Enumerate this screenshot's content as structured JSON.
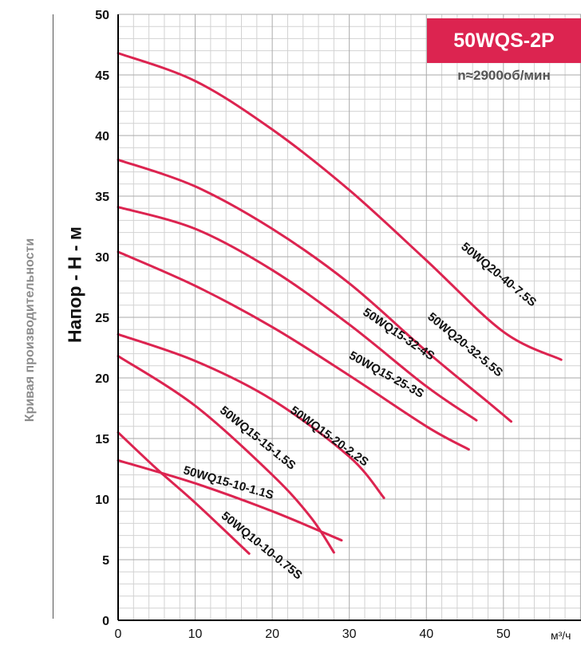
{
  "side_title": "Кривая производительности",
  "chart_data": {
    "type": "line",
    "title": "50WQS-2P",
    "subtitle": "n≈2900об/мин",
    "ylabel": "Напор - Н - м",
    "xlabel": "м³/ч",
    "xlim": [
      0,
      60
    ],
    "ylim": [
      0,
      50
    ],
    "xticks": [
      0,
      10,
      20,
      30,
      40,
      50
    ],
    "yticks": [
      0,
      5,
      10,
      15,
      20,
      25,
      30,
      35,
      40,
      45,
      50
    ],
    "grid": true,
    "line_color": "#dc2450",
    "series": [
      {
        "name": "50WQ20-40-7.5S",
        "x": [
          0,
          10,
          20,
          30,
          40,
          50,
          57.5
        ],
        "y": [
          46.8,
          44.5,
          40.5,
          35.5,
          29.7,
          23.8,
          21.5
        ]
      },
      {
        "name": "50WQ20-32-5.5S",
        "x": [
          0,
          10,
          20,
          30,
          40,
          48,
          51
        ],
        "y": [
          38.0,
          35.8,
          32.3,
          27.8,
          22.2,
          18.0,
          16.4
        ]
      },
      {
        "name": "50WQ15-32-4S",
        "x": [
          0,
          10,
          20,
          30,
          40,
          46.5
        ],
        "y": [
          34.1,
          32.3,
          28.9,
          24.4,
          19.3,
          16.5
        ]
      },
      {
        "name": "50WQ15-25-3S",
        "x": [
          0,
          10,
          20,
          30,
          40,
          45.5
        ],
        "y": [
          30.4,
          27.6,
          24.2,
          20.2,
          16.0,
          14.1
        ]
      },
      {
        "name": "50WQ15-20-2.2S",
        "x": [
          0,
          10,
          20,
          30,
          34.5
        ],
        "y": [
          23.6,
          21.4,
          18.2,
          13.5,
          10.1
        ]
      },
      {
        "name": "50WQ15-15-1.5S",
        "x": [
          0,
          10,
          20,
          25,
          28
        ],
        "y": [
          21.8,
          17.7,
          12.0,
          8.5,
          5.6
        ]
      },
      {
        "name": "50WQ15-10-1.1S",
        "x": [
          0,
          10,
          20,
          29
        ],
        "y": [
          13.2,
          11.3,
          9.0,
          6.6
        ]
      },
      {
        "name": "50WQ10-10-0.75S",
        "x": [
          0,
          5,
          10,
          17
        ],
        "y": [
          15.5,
          12.5,
          9.7,
          5.5
        ]
      }
    ]
  }
}
